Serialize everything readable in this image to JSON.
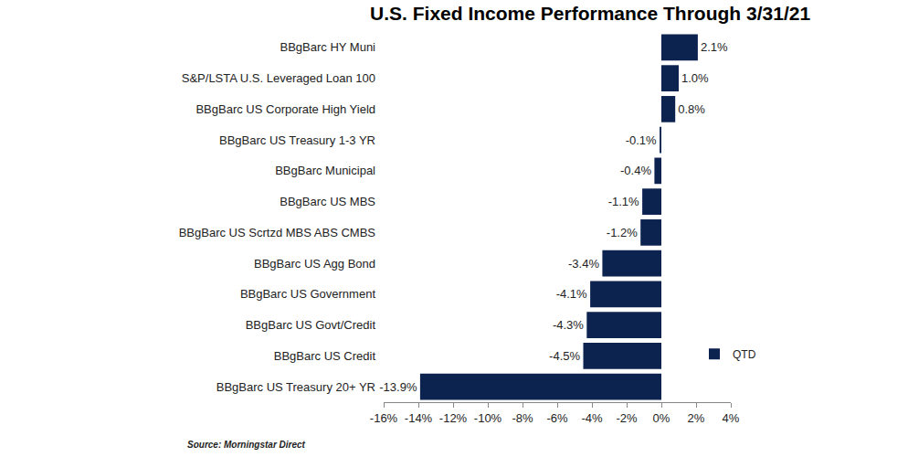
{
  "chart_data": {
    "type": "bar",
    "orientation": "horizontal",
    "title": "U.S. Fixed Income Performance Through 3/31/21",
    "source": "Source: Morningstar Direct",
    "categories": [
      "BBgBarc HY Muni",
      "S&P/LSTA U.S. Leveraged Loan 100",
      "BBgBarc US Corporate High Yield",
      "BBgBarc US Treasury 1-3 YR",
      "BBgBarc Municipal",
      "BBgBarc US MBS",
      "BBgBarc US Scrtzd MBS ABS CMBS",
      "BBgBarc US Agg Bond",
      "BBgBarc US Government",
      "BBgBarc US Govt/Credit",
      "BBgBarc US Credit",
      "BBgBarc US Treasury 20+ YR"
    ],
    "series": [
      {
        "name": "QTD",
        "color": "#0c2350",
        "values": [
          2.1,
          1.0,
          0.8,
          -0.1,
          -0.4,
          -1.1,
          -1.2,
          -3.4,
          -4.1,
          -4.3,
          -4.5,
          -13.9
        ],
        "value_labels": [
          "2.1%",
          "1.0%",
          "0.8%",
          "-0.1%",
          "-0.4%",
          "-1.1%",
          "-1.2%",
          "-3.4%",
          "-4.1%",
          "-4.3%",
          "-4.5%",
          "-13.9%"
        ]
      }
    ],
    "xlim": [
      -16,
      4
    ],
    "xticks": [
      {
        "value": -16,
        "label": "-16%"
      },
      {
        "value": -14,
        "label": "-14%"
      },
      {
        "value": -12,
        "label": "-12%"
      },
      {
        "value": -10,
        "label": "-10%"
      },
      {
        "value": -8,
        "label": "-8%"
      },
      {
        "value": -6,
        "label": "-6%"
      },
      {
        "value": -4,
        "label": "-4%"
      },
      {
        "value": -2,
        "label": "-2%"
      },
      {
        "value": 0,
        "label": "0%"
      },
      {
        "value": 2,
        "label": "2%"
      },
      {
        "value": 4,
        "label": "4%"
      }
    ],
    "grid": false,
    "legend": "bottom right",
    "data_labels": true
  }
}
